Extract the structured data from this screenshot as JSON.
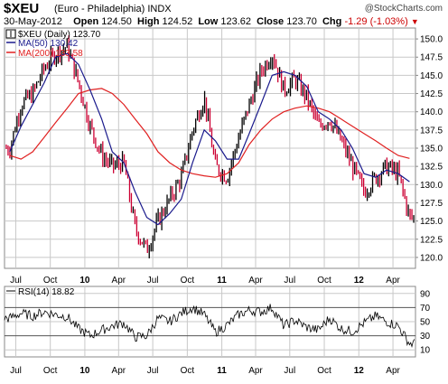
{
  "header": {
    "symbol": "$XEU",
    "name": "(Euro - Philadelphia) INDX",
    "brand": "@StockCharts.com",
    "date": "30-May-2012",
    "open_label": "Open",
    "open": "124.50",
    "high_label": "High",
    "high": "124.52",
    "low_label": "Low",
    "low": "123.62",
    "close_label": "Close",
    "close": "123.70",
    "chg_label": "Chg",
    "chg": "-1.29 (-1.03%)"
  },
  "colors": {
    "price_up": "#000000",
    "price_down": "#cc0033",
    "ma50": "#1a1a8c",
    "ma200": "#e02020",
    "rsi": "#000000",
    "grid": "#c8c8c8"
  },
  "legend": {
    "price": "$XEU (Daily) 123.70",
    "ma50": "MA(50) 130.42",
    "ma200": "MA(200) 133.58",
    "rsi": "RSI(14) 18.82"
  },
  "chart_data": [
    {
      "type": "line",
      "title": "$XEU (Daily) 123.70",
      "xlabel": "",
      "ylabel": "",
      "x_ticks": [
        {
          "label": "Jul",
          "date": "2009-07"
        },
        {
          "label": "Oct",
          "date": "2009-10"
        },
        {
          "label": "10",
          "date": "2010-01",
          "bold": true
        },
        {
          "label": "Apr",
          "date": "2010-04"
        },
        {
          "label": "Jul",
          "date": "2010-07"
        },
        {
          "label": "Oct",
          "date": "2010-10"
        },
        {
          "label": "11",
          "date": "2011-01",
          "bold": true
        },
        {
          "label": "Apr",
          "date": "2011-04"
        },
        {
          "label": "Jul",
          "date": "2011-07"
        },
        {
          "label": "Oct",
          "date": "2011-10"
        },
        {
          "label": "12",
          "date": "2012-01",
          "bold": true
        },
        {
          "label": "Apr",
          "date": "2012-04"
        }
      ],
      "y_ticks": [
        "120.0",
        "122.5",
        "125.0",
        "127.5",
        "130.0",
        "132.5",
        "135.0",
        "137.5",
        "140.0",
        "142.5",
        "145.0",
        "147.5",
        "150.0"
      ],
      "ylim": [
        118.5,
        151.5
      ],
      "x": [
        "2009-06",
        "2009-07",
        "2009-08",
        "2009-09",
        "2009-10",
        "2009-11",
        "2009-12",
        "2010-01",
        "2010-02",
        "2010-03",
        "2010-04",
        "2010-05",
        "2010-06",
        "2010-07",
        "2010-08",
        "2010-09",
        "2010-10",
        "2010-11",
        "2010-12",
        "2011-01",
        "2011-02",
        "2011-03",
        "2011-04",
        "2011-05",
        "2011-06",
        "2011-07",
        "2011-08",
        "2011-09",
        "2011-10",
        "2011-11",
        "2011-12",
        "2012-01",
        "2012-02",
        "2012-03",
        "2012-04",
        "2012-05"
      ],
      "series": [
        {
          "name": "$XEU (Daily) 123.70",
          "values": [
            135.0,
            141.0,
            142.5,
            146.0,
            148.0,
            149.0,
            144.0,
            138.0,
            134.0,
            132.5,
            133.0,
            124.0,
            121.0,
            125.0,
            128.0,
            131.0,
            137.5,
            142.0,
            132.5,
            131.0,
            136.5,
            141.0,
            145.5,
            148.0,
            143.0,
            144.5,
            142.0,
            138.0,
            139.0,
            136.0,
            132.5,
            129.0,
            131.0,
            132.5,
            131.5,
            125.5
          ]
        },
        {
          "name": "MA(50) 130.42",
          "values": [
            134.5,
            138.0,
            141.0,
            144.0,
            147.5,
            148.0,
            146.5,
            143.0,
            139.0,
            134.5,
            133.0,
            129.0,
            125.5,
            124.5,
            126.0,
            128.0,
            133.0,
            137.5,
            136.0,
            133.5,
            133.5,
            137.0,
            141.0,
            145.0,
            145.5,
            145.0,
            143.5,
            140.0,
            139.0,
            137.5,
            135.0,
            131.5,
            131.0,
            132.0,
            131.5,
            130.4
          ]
        },
        {
          "name": "MA(200) 133.58",
          "values": [
            134.0,
            133.5,
            134.5,
            136.5,
            138.5,
            140.5,
            142.5,
            143.0,
            143.2,
            142.5,
            141.0,
            139.0,
            137.0,
            134.5,
            133.0,
            132.0,
            131.5,
            131.2,
            131.0,
            131.5,
            133.0,
            135.5,
            137.5,
            139.0,
            140.0,
            140.5,
            140.8,
            140.5,
            140.0,
            139.0,
            138.0,
            137.0,
            136.0,
            135.0,
            134.0,
            133.6
          ]
        }
      ]
    },
    {
      "type": "line",
      "title": "RSI(14) 18.82",
      "xlabel": "",
      "ylabel": "",
      "y_ticks": [
        "10",
        "30",
        "50",
        "70",
        "90"
      ],
      "ylim": [
        0,
        100
      ],
      "x": [
        "2009-06",
        "2009-07",
        "2009-08",
        "2009-09",
        "2009-10",
        "2009-11",
        "2009-12",
        "2010-01",
        "2010-02",
        "2010-03",
        "2010-04",
        "2010-05",
        "2010-06",
        "2010-07",
        "2010-08",
        "2010-09",
        "2010-10",
        "2010-11",
        "2010-12",
        "2011-01",
        "2011-02",
        "2011-03",
        "2011-04",
        "2011-05",
        "2011-06",
        "2011-07",
        "2011-08",
        "2011-09",
        "2011-10",
        "2011-11",
        "2011-12",
        "2012-01",
        "2012-02",
        "2012-03",
        "2012-04",
        "2012-05"
      ],
      "series": [
        {
          "name": "RSI(14) 18.82",
          "values": [
            55,
            62,
            58,
            64,
            60,
            57,
            40,
            30,
            38,
            44,
            48,
            28,
            30,
            55,
            50,
            62,
            70,
            60,
            35,
            45,
            60,
            66,
            64,
            70,
            44,
            52,
            42,
            38,
            55,
            40,
            36,
            48,
            58,
            50,
            44,
            19
          ]
        }
      ]
    }
  ]
}
